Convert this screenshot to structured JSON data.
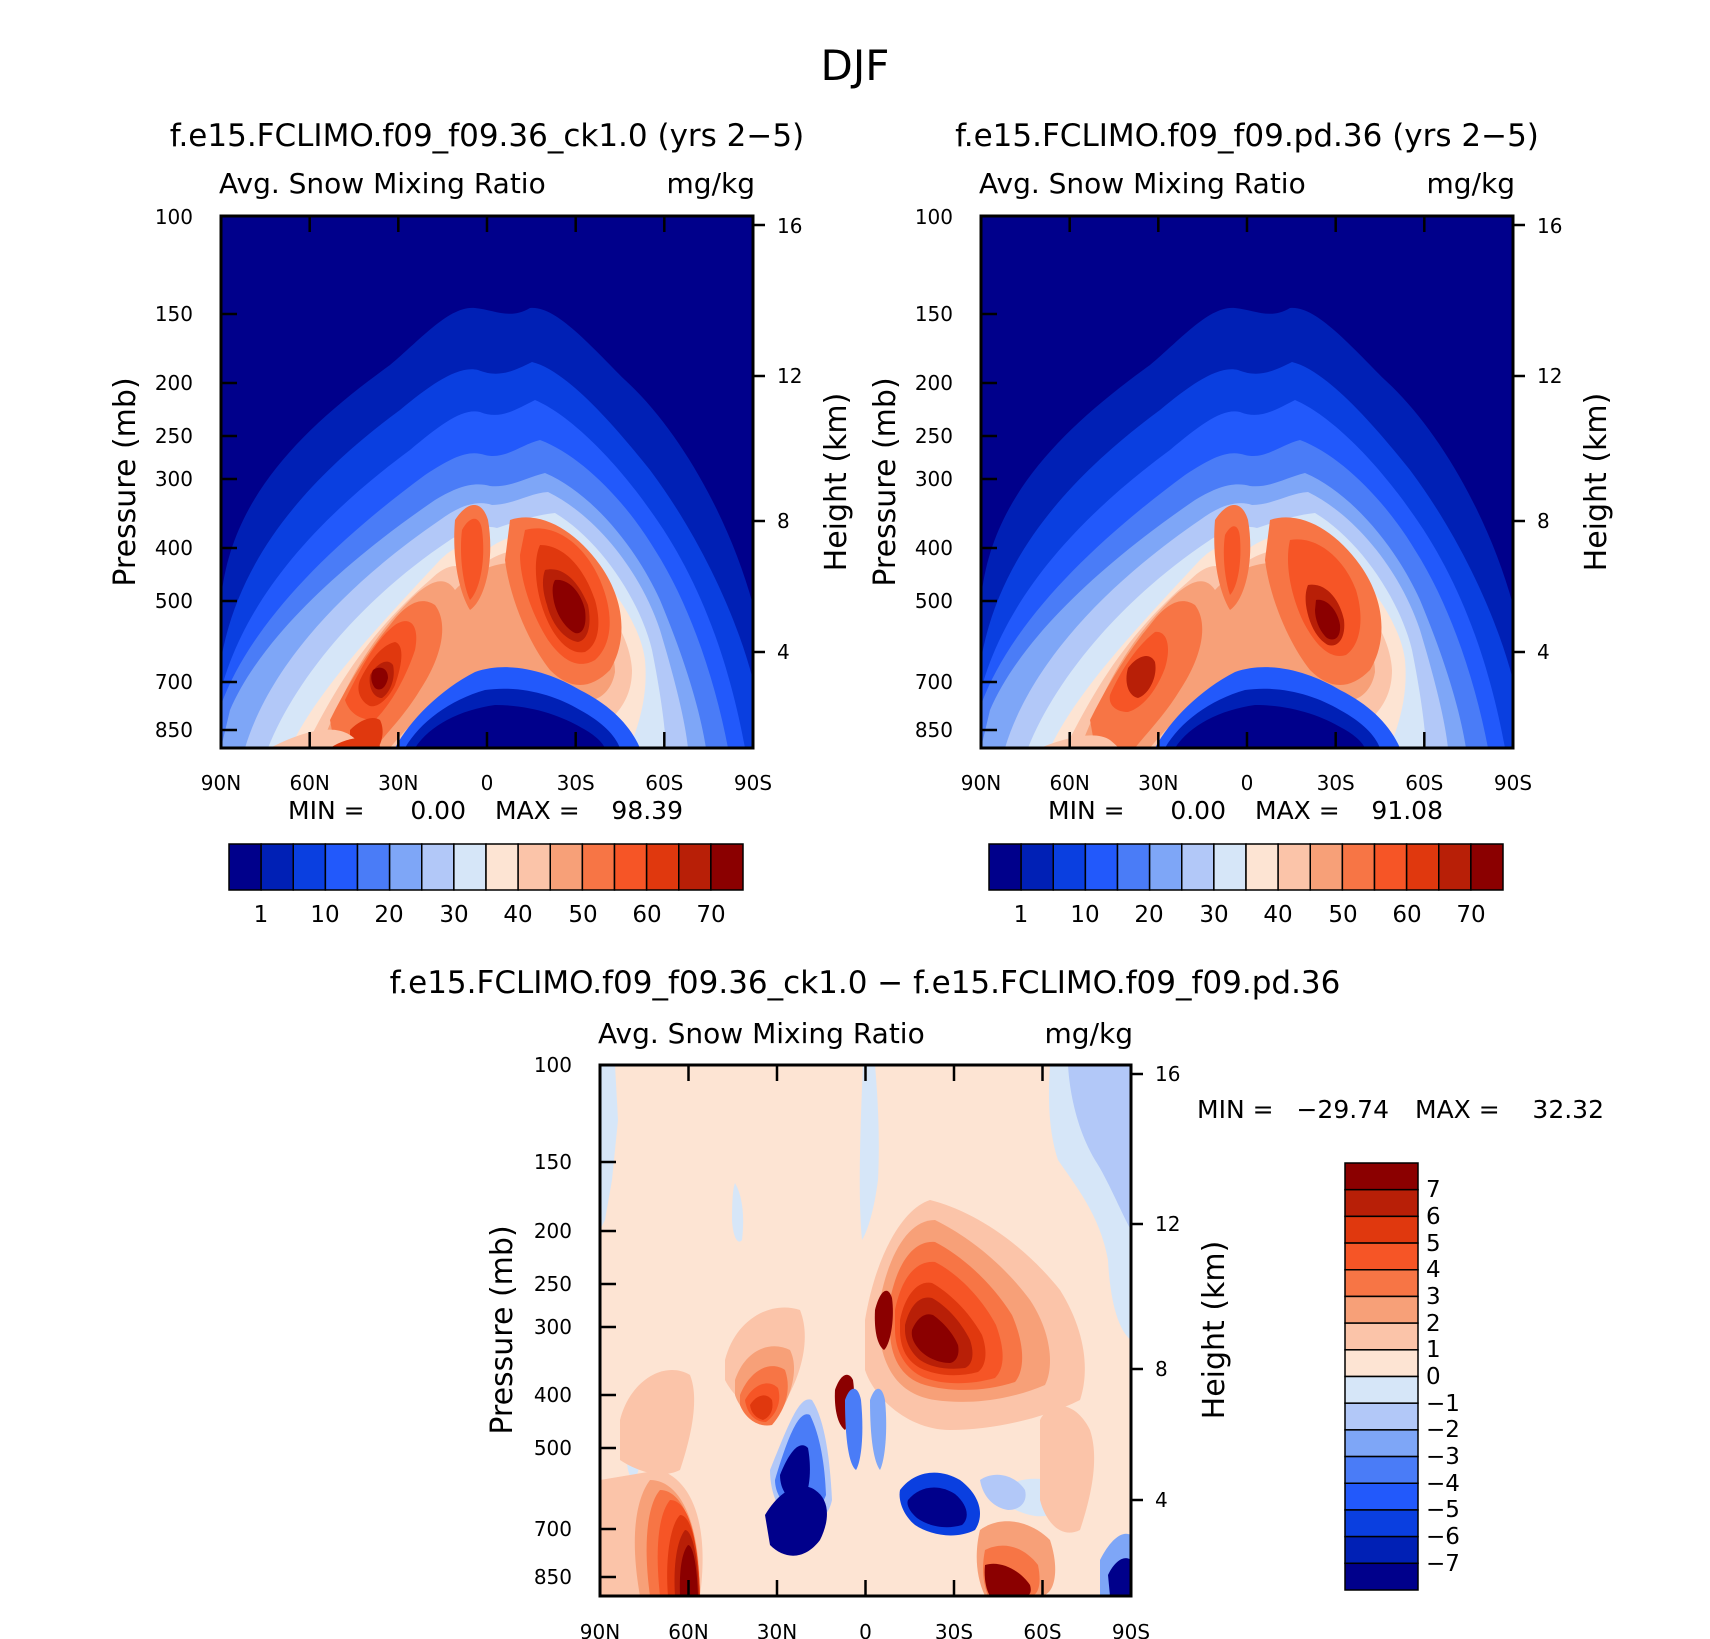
{
  "figure_title": "DJF",
  "chart_data": [
    {
      "type": "heatmap",
      "title": "f.e15.FCLIMO.f09_f09.36_ck1.0 (yrs 2−5)",
      "subtitle_left": "Avg. Snow Mixing Ratio",
      "subtitle_right": "mg/kg",
      "xlabel": "",
      "ylabel": "Pressure (mb)",
      "ylabel_right": "Height (km)",
      "x_ticks": [
        "90N",
        "60N",
        "30N",
        "0",
        "30S",
        "60S",
        "90S"
      ],
      "y_ticks": [
        "100",
        "150",
        "200",
        "250",
        "300",
        "400",
        "500",
        "700",
        "850"
      ],
      "y_right_ticks": [
        "16",
        "12",
        "8",
        "4"
      ],
      "ylim": [
        100,
        1000
      ],
      "min_label": "MIN =",
      "min_value": "0.00",
      "max_label": "MAX =",
      "max_value": "98.39",
      "colorbar": {
        "levels": [
          1,
          5,
          10,
          15,
          20,
          25,
          30,
          35,
          40,
          45,
          50,
          55,
          60,
          65,
          70
        ],
        "labels": [
          "1",
          "10",
          "20",
          "30",
          "40",
          "50",
          "60",
          "70"
        ],
        "colors": [
          "#00008b",
          "#0020b5",
          "#0a3fe0",
          "#2259fb",
          "#4a7cf7",
          "#7ea6f7",
          "#b2c8f8",
          "#d6e6f8",
          "#fde4d3",
          "#fbc4a9",
          "#f7a078",
          "#f77545",
          "#f65526",
          "#e0380e",
          "#b81f07",
          "#8b0000"
        ]
      }
    },
    {
      "type": "heatmap",
      "title": "f.e15.FCLIMO.f09_f09.pd.36 (yrs 2−5)",
      "subtitle_left": "Avg. Snow Mixing Ratio",
      "subtitle_right": "mg/kg",
      "xlabel": "",
      "ylabel": "Pressure (mb)",
      "ylabel_right": "Height (km)",
      "x_ticks": [
        "90N",
        "60N",
        "30N",
        "0",
        "30S",
        "60S",
        "90S"
      ],
      "y_ticks": [
        "100",
        "150",
        "200",
        "250",
        "300",
        "400",
        "500",
        "700",
        "850"
      ],
      "y_right_ticks": [
        "16",
        "12",
        "8",
        "4"
      ],
      "ylim": [
        100,
        1000
      ],
      "min_label": "MIN =",
      "min_value": "0.00",
      "max_label": "MAX =",
      "max_value": "91.08",
      "colorbar": {
        "levels": [
          1,
          5,
          10,
          15,
          20,
          25,
          30,
          35,
          40,
          45,
          50,
          55,
          60,
          65,
          70
        ],
        "labels": [
          "1",
          "10",
          "20",
          "30",
          "40",
          "50",
          "60",
          "70"
        ],
        "colors": [
          "#00008b",
          "#0020b5",
          "#0a3fe0",
          "#2259fb",
          "#4a7cf7",
          "#7ea6f7",
          "#b2c8f8",
          "#d6e6f8",
          "#fde4d3",
          "#fbc4a9",
          "#f7a078",
          "#f77545",
          "#f65526",
          "#e0380e",
          "#b81f07",
          "#8b0000"
        ]
      }
    },
    {
      "type": "heatmap",
      "title": "f.e15.FCLIMO.f09_f09.36_ck1.0 − f.e15.FCLIMO.f09_f09.pd.36",
      "subtitle_left": "Avg. Snow Mixing Ratio",
      "subtitle_right": "mg/kg",
      "xlabel": "",
      "ylabel": "Pressure (mb)",
      "ylabel_right": "Height (km)",
      "x_ticks": [
        "90N",
        "60N",
        "30N",
        "0",
        "30S",
        "60S",
        "90S"
      ],
      "y_ticks": [
        "100",
        "150",
        "200",
        "250",
        "300",
        "400",
        "500",
        "700",
        "850"
      ],
      "y_right_ticks": [
        "16",
        "12",
        "8",
        "4"
      ],
      "ylim": [
        100,
        1000
      ],
      "min_label": "MIN =",
      "min_value": "−29.74",
      "max_label": "MAX =",
      "max_value": "32.32",
      "colorbar": {
        "levels": [
          7,
          6,
          5,
          4,
          3,
          2,
          1,
          0,
          -1,
          -2,
          -3,
          -4,
          -5,
          -6,
          -7
        ],
        "labels": [
          "7",
          "6",
          "5",
          "4",
          "3",
          "2",
          "1",
          "0",
          "−1",
          "−2",
          "−3",
          "−4",
          "−5",
          "−6",
          "−7"
        ],
        "colors": [
          "#8b0000",
          "#b81f07",
          "#e0380e",
          "#f65526",
          "#f77545",
          "#f7a078",
          "#fbc4a9",
          "#fde4d3",
          "#d6e6f8",
          "#b2c8f8",
          "#7ea6f7",
          "#4a7cf7",
          "#2259fb",
          "#0a3fe0",
          "#0020b5",
          "#00008b"
        ]
      }
    }
  ]
}
